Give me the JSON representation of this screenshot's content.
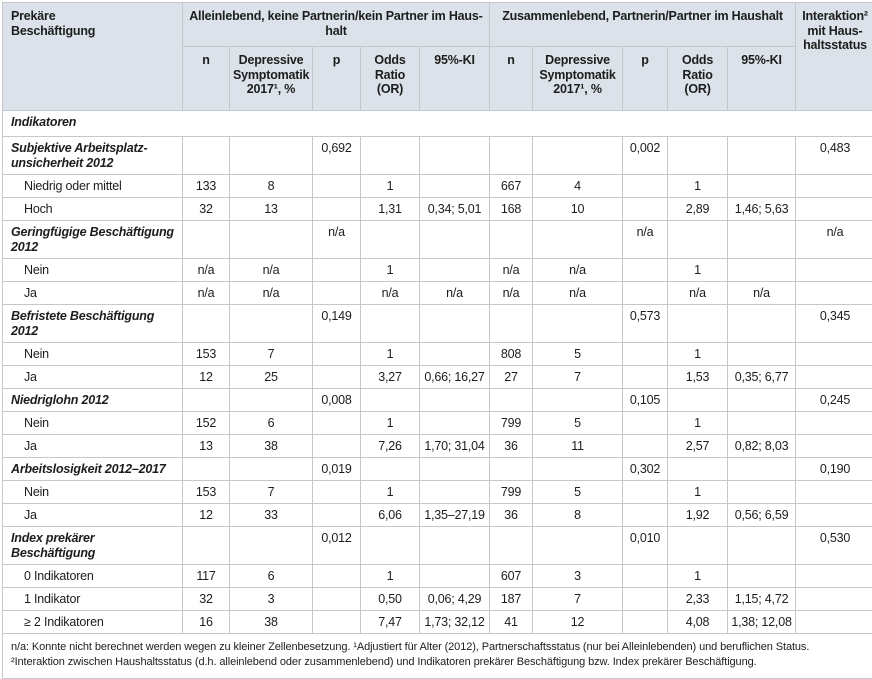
{
  "colors": {
    "header_bg": "#dbe2e9",
    "grid_border": "#c2c8ce",
    "outer_border": "#8d949b",
    "text": "#1d1d1d"
  },
  "table": {
    "corner_label": "Prekäre\nBeschäftigung",
    "groups": [
      {
        "label": "Alleinlebend, keine Partnerin/kein Partner im Haus­halt"
      },
      {
        "label": "Zusammenlebend, Partnerin/Partner im Haushalt"
      }
    ],
    "subcols": {
      "n": "n",
      "dep": "Depressive Symptomatik 2017¹, %",
      "p": "p",
      "or": "Odds Ratio (OR)",
      "ki": "95%-KI"
    },
    "interaction_label": "Interaktion² mit Haus­halts­status",
    "rows": [
      {
        "type": "group",
        "label": "Indikatoren"
      },
      {
        "type": "section",
        "label": "Subjektive Arbeitsplatz­unsicherheit 2012",
        "cells": [
          "",
          "",
          "0,692",
          "",
          "",
          "",
          "",
          "0,002",
          "",
          "",
          "0,483"
        ]
      },
      {
        "type": "sub",
        "label": "Niedrig oder mittel",
        "cells": [
          "133",
          "8",
          "",
          "1",
          "",
          "667",
          "4",
          "",
          "1",
          "",
          ""
        ]
      },
      {
        "type": "sub",
        "label": "Hoch",
        "cells": [
          "32",
          "13",
          "",
          "1,31",
          "0,34; 5,01",
          "168",
          "10",
          "",
          "2,89",
          "1,46; 5,63",
          ""
        ]
      },
      {
        "type": "section",
        "label": "Geringfügige Beschäftigung 2012",
        "cells": [
          "",
          "",
          "n/a",
          "",
          "",
          "",
          "",
          "n/a",
          "",
          "",
          "n/a"
        ]
      },
      {
        "type": "sub",
        "label": "Nein",
        "cells": [
          "n/a",
          "n/a",
          "",
          "1",
          "",
          "n/a",
          "n/a",
          "",
          "1",
          "",
          ""
        ]
      },
      {
        "type": "sub",
        "label": "Ja",
        "cells": [
          "n/a",
          "n/a",
          "",
          "n/a",
          "n/a",
          "n/a",
          "n/a",
          "",
          "n/a",
          "n/a",
          ""
        ]
      },
      {
        "type": "section",
        "label": "Befristete Beschäftigung 2012",
        "cells": [
          "",
          "",
          "0,149",
          "",
          "",
          "",
          "",
          "0,573",
          "",
          "",
          "0,345"
        ]
      },
      {
        "type": "sub",
        "label": "Nein",
        "cells": [
          "153",
          "7",
          "",
          "1",
          "",
          "808",
          "5",
          "",
          "1",
          "",
          ""
        ]
      },
      {
        "type": "sub",
        "label": "Ja",
        "cells": [
          "12",
          "25",
          "",
          "3,27",
          "0,66; 16,27",
          "27",
          "7",
          "",
          "1,53",
          "0,35; 6,77",
          ""
        ]
      },
      {
        "type": "section",
        "label": "Niedriglohn 2012",
        "cells": [
          "",
          "",
          "0,008",
          "",
          "",
          "",
          "",
          "0,105",
          "",
          "",
          "0,245"
        ]
      },
      {
        "type": "sub",
        "label": "Nein",
        "cells": [
          "152",
          "6",
          "",
          "1",
          "",
          "799",
          "5",
          "",
          "1",
          "",
          ""
        ]
      },
      {
        "type": "sub",
        "label": "Ja",
        "cells": [
          "13",
          "38",
          "",
          "7,26",
          "1,70; 31,04",
          "36",
          "11",
          "",
          "2,57",
          "0,82; 8,03",
          ""
        ]
      },
      {
        "type": "section",
        "label": "Arbeitslosigkeit 2012–2017",
        "cells": [
          "",
          "",
          "0,019",
          "",
          "",
          "",
          "",
          "0,302",
          "",
          "",
          "0,190"
        ]
      },
      {
        "type": "sub",
        "label": "Nein",
        "cells": [
          "153",
          "7",
          "",
          "1",
          "",
          "799",
          "5",
          "",
          "1",
          "",
          ""
        ]
      },
      {
        "type": "sub",
        "label": "Ja",
        "cells": [
          "12",
          "33",
          "",
          "6,06",
          "1,35–27,19",
          "36",
          "8",
          "",
          "1,92",
          "0,56; 6,59",
          ""
        ]
      },
      {
        "type": "section",
        "label": "Index prekärer Beschäftigung",
        "cells": [
          "",
          "",
          "0,012",
          "",
          "",
          "",
          "",
          "0,010",
          "",
          "",
          "0,530"
        ]
      },
      {
        "type": "sub",
        "label": "0 Indikatoren",
        "cells": [
          "117",
          "6",
          "",
          "1",
          "",
          "607",
          "3",
          "",
          "1",
          "",
          ""
        ]
      },
      {
        "type": "sub",
        "label": "1 Indikator",
        "cells": [
          "32",
          "3",
          "",
          "0,50",
          "0,06; 4,29",
          "187",
          "7",
          "",
          "2,33",
          "1,15; 4,72",
          ""
        ]
      },
      {
        "type": "sub",
        "label": "≥ 2 Indikatoren",
        "cells": [
          "16",
          "38",
          "",
          "7,47",
          "1,73; 32,12",
          "41",
          "12",
          "",
          "4,08",
          "1,38; 12,08",
          ""
        ]
      }
    ],
    "footnote": "n/a: Konnte nicht berechnet werden wegen zu kleiner Zellenbesetzung. ¹Adjustiert für Alter (2012), Partnerschaftsstatus (nur bei Alleinlebenden) und beruflichen Status. ²Interaktion zwischen Haushaltsstatus (d.h. alleinlebend oder zusammenlebend) und Indikatoren prekärer Beschäftigung bzw. Index prekärer Beschäftigung."
  }
}
